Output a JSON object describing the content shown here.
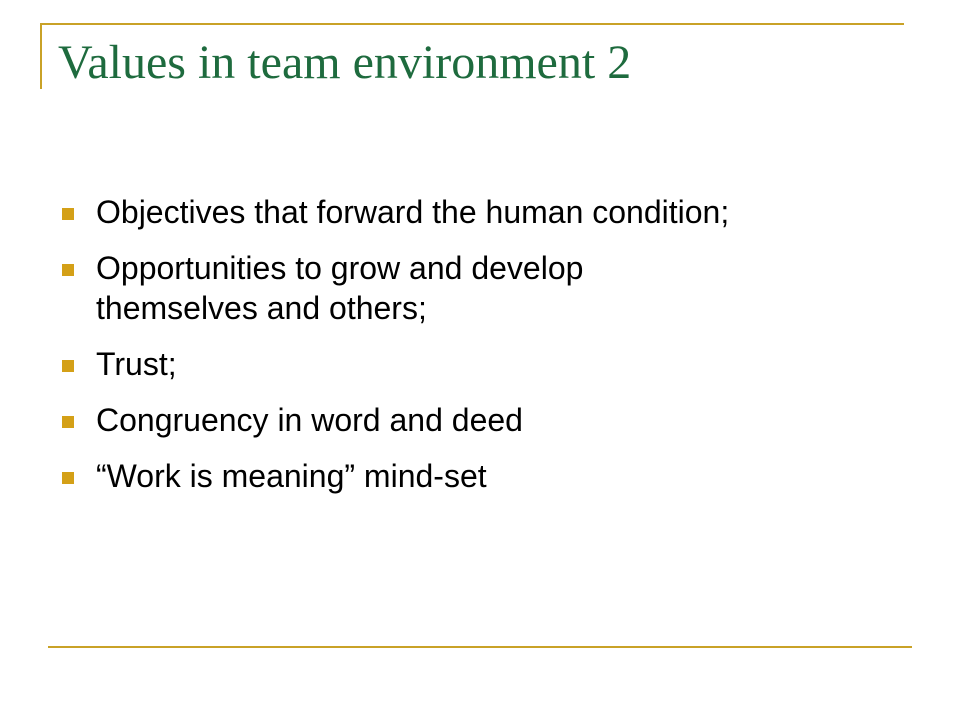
{
  "slide": {
    "title": "Values in team environment 2",
    "bullets": [
      "Objectives that forward the human condition;",
      "Opportunities to grow and develop themselves and others;",
      "Trust;",
      "Congruency in word and deed",
      "“Work is meaning” mind-set"
    ]
  },
  "colors": {
    "title": "#1e6b3e",
    "accent": "#c9a227",
    "bullet_marker": "#d4a017",
    "text": "#000000",
    "background": "#ffffff"
  },
  "icons": {
    "bullet": "square-bullet-icon"
  }
}
